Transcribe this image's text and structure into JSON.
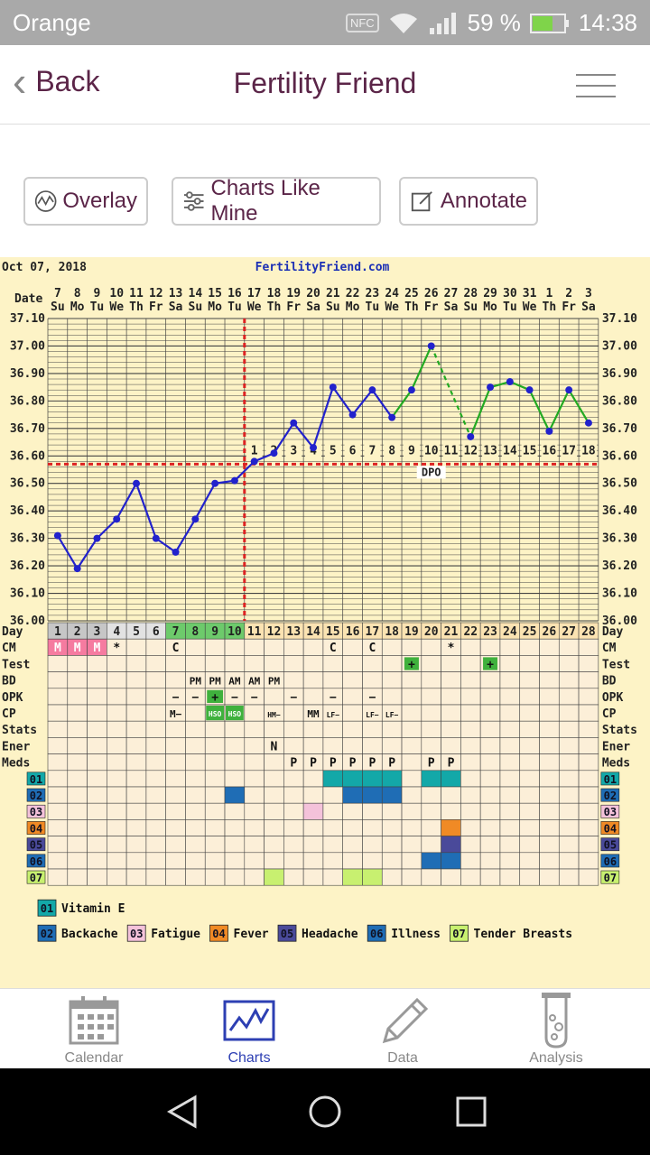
{
  "status_bar": {
    "carrier": "Orange",
    "nfc": "NFC",
    "battery": "59 %",
    "time": "14:38"
  },
  "header": {
    "back_label": "Back",
    "title": "Fertility Friend"
  },
  "toolbar": {
    "overlay": "Overlay",
    "charts_like_mine": "Charts Like Mine",
    "annotate": "Annotate"
  },
  "chart_data": {
    "type": "line",
    "date_label": "Oct 07, 2018",
    "site": "FertilityFriend.com",
    "row_date_label": "Date",
    "row_day_label": "Day",
    "dates": [
      "7",
      "8",
      "9",
      "10",
      "11",
      "12",
      "13",
      "14",
      "15",
      "16",
      "17",
      "18",
      "19",
      "20",
      "21",
      "22",
      "23",
      "24",
      "25",
      "26",
      "27",
      "28",
      "29",
      "30",
      "31",
      "1",
      "2",
      "3"
    ],
    "weekdays": [
      "Su",
      "Mo",
      "Tu",
      "We",
      "Th",
      "Fr",
      "Sa",
      "Su",
      "Mo",
      "Tu",
      "We",
      "Th",
      "Fr",
      "Sa",
      "Su",
      "Mo",
      "Tu",
      "We",
      "Th",
      "Fr",
      "Sa",
      "Su",
      "Mo",
      "Tu",
      "We",
      "Th",
      "Fr",
      "Sa"
    ],
    "days": [
      "1",
      "2",
      "3",
      "4",
      "5",
      "6",
      "7",
      "8",
      "9",
      "10",
      "11",
      "12",
      "13",
      "14",
      "15",
      "16",
      "17",
      "18",
      "19",
      "20",
      "21",
      "22",
      "23",
      "24",
      "25",
      "26",
      "27",
      "28"
    ],
    "y_ticks": [
      "37.10",
      "37.00",
      "36.90",
      "36.80",
      "36.70",
      "36.60",
      "36.50",
      "36.40",
      "36.30",
      "36.20",
      "36.10",
      "36.00"
    ],
    "ylim": [
      36.0,
      37.1
    ],
    "temps": [
      36.31,
      36.19,
      36.3,
      36.37,
      36.5,
      36.3,
      36.25,
      36.37,
      36.5,
      36.51,
      36.58,
      36.61,
      36.72,
      36.63,
      36.85,
      36.75,
      36.84,
      36.74,
      36.84,
      37.0,
      null,
      36.67,
      36.85,
      36.87,
      36.84,
      36.69,
      36.84,
      36.72
    ],
    "coverline": 36.57,
    "ovulation_day": 10,
    "dpo_numbers": [
      "1",
      "2",
      "3",
      "4",
      "5",
      "6",
      "7",
      "8",
      "9",
      "10",
      "11",
      "12",
      "13",
      "14",
      "15",
      "16",
      "17",
      "18"
    ],
    "dpo_label": "DPO",
    "row_labels": [
      "CM",
      "Test",
      "BD",
      "OPK",
      "CP",
      "Stats",
      "Ener",
      "Meds",
      "01",
      "02",
      "03",
      "04",
      "05",
      "06",
      "07"
    ],
    "row_cells": {
      "CM": [
        "M",
        "M",
        "M",
        "*",
        "",
        "",
        "C",
        "",
        "",
        "",
        "",
        "",
        "",
        "",
        "C",
        "",
        "C",
        "",
        "",
        "",
        "*",
        "",
        "",
        "",
        "",
        "",
        "",
        ""
      ],
      "Test": [
        "",
        "",
        "",
        "",
        "",
        "",
        "",
        "",
        "",
        "",
        "",
        "",
        "",
        "",
        "",
        "",
        "",
        "",
        "+",
        "",
        "",
        "",
        "+",
        "",
        "",
        "",
        "",
        ""
      ],
      "BD": [
        "",
        "",
        "",
        "",
        "",
        "",
        "",
        "PM",
        "PM",
        "AM",
        "AM",
        "PM",
        "",
        "",
        "",
        "",
        "",
        "",
        "",
        "",
        "",
        "",
        "",
        "",
        "",
        "",
        "",
        ""
      ],
      "OPK": [
        "",
        "",
        "",
        "",
        "",
        "",
        "−",
        "−",
        "+",
        "−",
        "−",
        "",
        "−",
        "",
        "−",
        "",
        "−",
        "",
        "",
        "",
        "",
        "",
        "",
        "",
        "",
        "",
        "",
        ""
      ],
      "CP": [
        "",
        "",
        "",
        "",
        "",
        "",
        "M−",
        "",
        "HSO",
        "HSO",
        "",
        "HM−",
        "",
        "MM",
        "LF−",
        "",
        "LF−",
        "LF−",
        "",
        "",
        "",
        "",
        "",
        "",
        "",
        "",
        "",
        ""
      ],
      "Ener": [
        "",
        "",
        "",
        "",
        "",
        "",
        "",
        "",
        "",
        "",
        "",
        "N",
        "",
        "",
        "",
        "",
        "",
        "",
        "",
        "",
        "",
        "",
        "",
        "",
        "",
        "",
        "",
        ""
      ],
      "Meds": [
        "",
        "",
        "",
        "",
        "",
        "",
        "",
        "",
        "",
        "",
        "",
        "",
        "P",
        "P",
        "P",
        "P",
        "P",
        "P",
        "",
        "P",
        "P",
        "",
        "",
        "",
        "",
        "",
        "",
        ""
      ]
    },
    "legend": [
      {
        "code": "01",
        "label": "Vitamin E",
        "color": "#13a8a8"
      },
      {
        "code": "02",
        "label": "Backache",
        "color": "#1f6db5"
      },
      {
        "code": "03",
        "label": "Fatigue",
        "color": "#f4c2da"
      },
      {
        "code": "04",
        "label": "Fever",
        "color": "#f08a25"
      },
      {
        "code": "05",
        "label": "Headache",
        "color": "#4a4a9a"
      },
      {
        "code": "06",
        "label": "Illness",
        "color": "#1f6db5"
      },
      {
        "code": "07",
        "label": "Tender Breasts",
        "color": "#c8f070"
      }
    ],
    "colors": {
      "pre": "#2222cc",
      "post": "#22aa22",
      "coverline": "#dd2222",
      "grid": "#444444",
      "bg": "#fdf3c6"
    }
  },
  "nav": {
    "calendar": "Calendar",
    "charts": "Charts",
    "data": "Data",
    "analysis": "Analysis"
  }
}
